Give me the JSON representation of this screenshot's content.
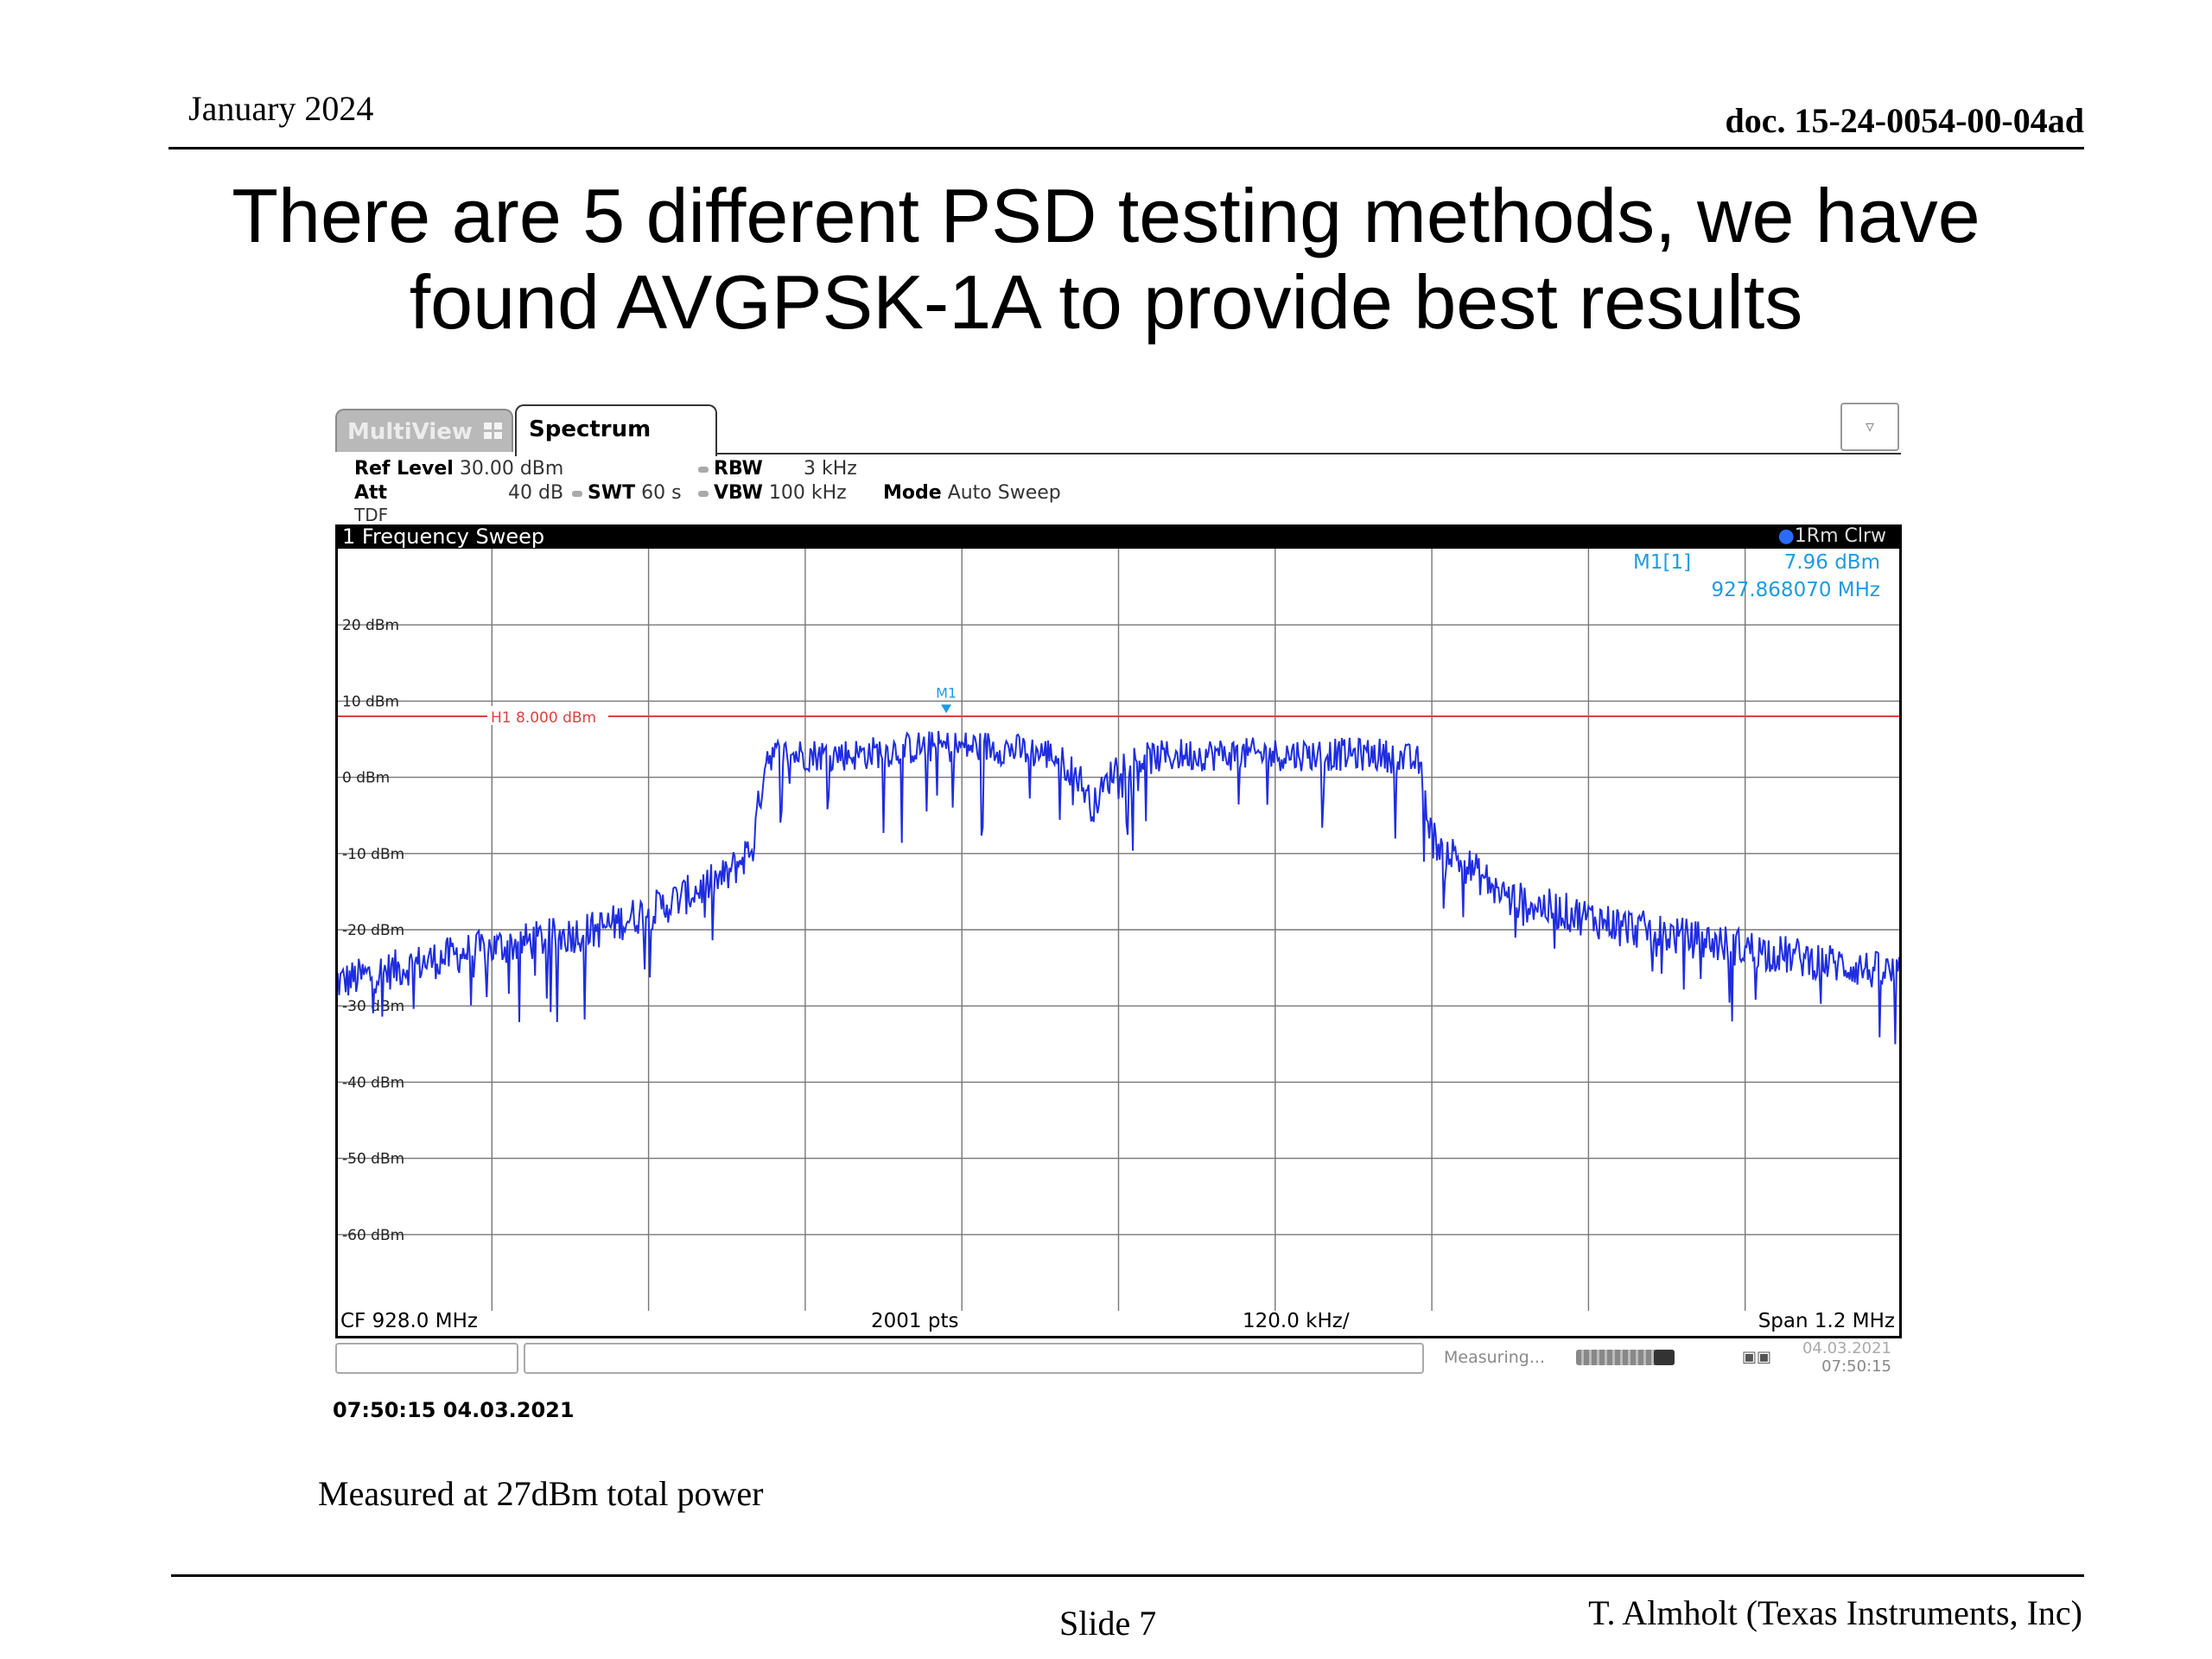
{
  "header": {
    "date": "January 2024",
    "doc_id": "doc. 15-24-0054-00-04ad"
  },
  "title": {
    "line1": "There are 5 different PSD testing methods, we have",
    "line2": "found AVGPSK-1A to provide best results"
  },
  "analyzer": {
    "tabs": [
      {
        "label": "MultiView",
        "active": false
      },
      {
        "label": "Spectrum",
        "active": true
      }
    ],
    "dropdown_icon": "chevron-down-icon",
    "settings": {
      "ref_level_label": "Ref Level",
      "ref_level_value": "30.00 dBm",
      "att_label": "Att",
      "att_value": "40 dB",
      "swt_label": "SWT",
      "swt_value": "60 s",
      "rbw_label": "RBW",
      "rbw_value": "3 kHz",
      "vbw_label": "VBW",
      "vbw_value": "100 kHz",
      "mode_label": "Mode",
      "mode_value": "Auto Sweep",
      "tdf": "TDF"
    },
    "plot_title": "1 Frequency Sweep",
    "trace_label": "1Rm Clrw",
    "marker": {
      "name": "M1[1]",
      "level": "7.96 dBm",
      "freq": "927.868070 MHz",
      "flag": "M1"
    },
    "footer": {
      "cf": "CF 928.0 MHz",
      "pts": "2001 pts",
      "div": "120.0 kHz/",
      "span": "Span 1.2 MHz"
    },
    "status": {
      "measuring": "Measuring...",
      "date": "04.03.2021",
      "time": "07:50:15"
    }
  },
  "chart_data": {
    "type": "line",
    "title": "1 Frequency Sweep",
    "xlabel": "",
    "ylabel": "",
    "x_range_mhz": [
      927.4,
      928.6
    ],
    "ylim": [
      -70,
      30
    ],
    "y_ticks": [
      "20 dBm",
      "10 dBm",
      "0 dBm",
      "-10 dBm",
      "-20 dBm",
      "-30 dBm",
      "-40 dBm",
      "-50 dBm",
      "-60 dBm"
    ],
    "y_tick_values": [
      20,
      10,
      0,
      -10,
      -20,
      -30,
      -40,
      -50,
      -60
    ],
    "grid": true,
    "hline": {
      "label": "H1 8.000 dBm",
      "value": 8.0,
      "color": "#e04040"
    },
    "marker": {
      "label": "M1",
      "x": 927.868,
      "y": 7.96
    },
    "trace_color": "#1f2de0",
    "series": [
      {
        "name": "1Rm Clrw",
        "x": [
          927.4,
          927.5,
          927.6,
          927.65,
          927.7,
          927.72,
          927.73,
          927.76,
          927.8,
          927.85,
          927.9,
          927.95,
          927.97,
          927.98,
          928.0,
          928.05,
          928.1,
          928.15,
          928.2,
          928.23,
          928.24,
          928.27,
          928.3,
          928.4,
          928.5,
          928.6
        ],
        "y": [
          -27,
          -23,
          -20,
          -17,
          -13,
          -9,
          3,
          3,
          3,
          4,
          4,
          3,
          0,
          -4,
          2,
          3,
          3,
          3,
          3,
          2,
          -8,
          -12,
          -16,
          -20,
          -23,
          -26
        ]
      }
    ]
  },
  "timestamp": "07:50:15  04.03.2021",
  "caption": "Measured at 27dBm total power",
  "footer": {
    "slide": "Slide 7",
    "author": "T. Almholt (Texas Instruments, Inc)"
  }
}
